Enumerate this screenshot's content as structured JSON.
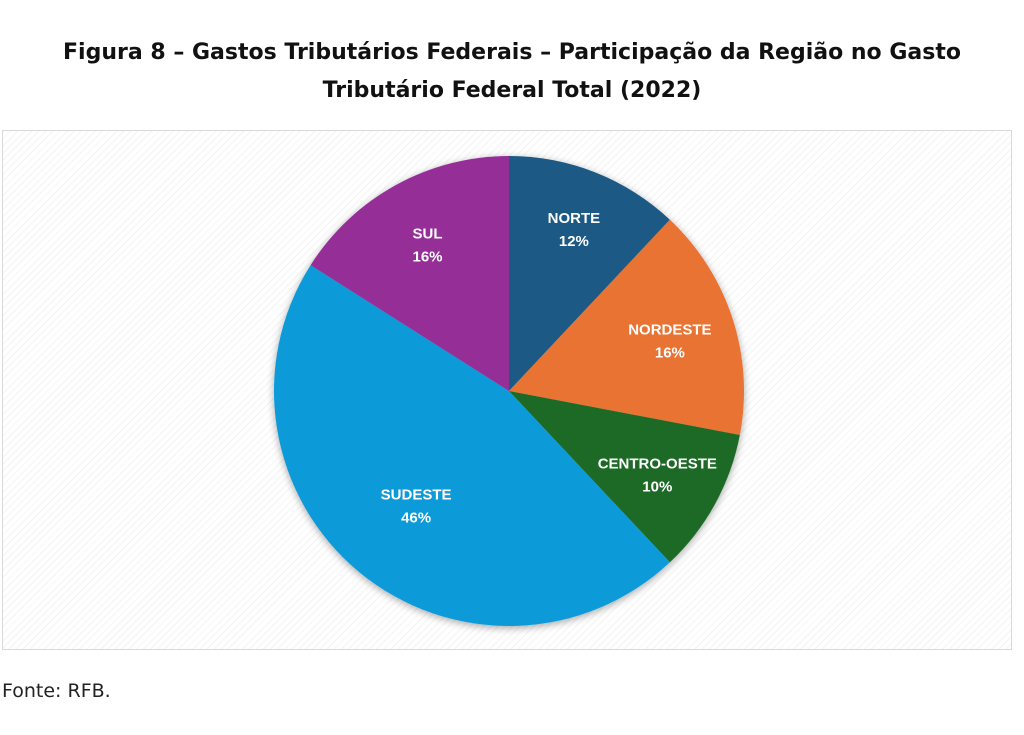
{
  "figure": {
    "title_line1": "Figura 8 – Gastos Tributários Federais – Participação da Região no Gasto",
    "title_line2": "Tributário Federal Total (2022)",
    "source": "Fonte: RFB."
  },
  "chart_data": {
    "type": "pie",
    "title": "Figura 8 – Gastos Tributários Federais – Participação da Região no Gasto Tributário Federal Total (2022)",
    "start": "12 o'clock",
    "direction": "clockwise",
    "slices": [
      {
        "label": "NORTE",
        "value": 12,
        "value_label": "12%",
        "color": "#1a5a85"
      },
      {
        "label": "NORDESTE",
        "value": 16,
        "value_label": "16%",
        "color": "#e87333"
      },
      {
        "label": "CENTRO-OESTE",
        "value": 10,
        "value_label": "10%",
        "color": "#1f6b26"
      },
      {
        "label": "SUDESTE",
        "value": 46,
        "value_label": "46%",
        "color": "#0f9ad8"
      },
      {
        "label": "SUL",
        "value": 16,
        "value_label": "16%",
        "color": "#952f96"
      }
    ]
  }
}
